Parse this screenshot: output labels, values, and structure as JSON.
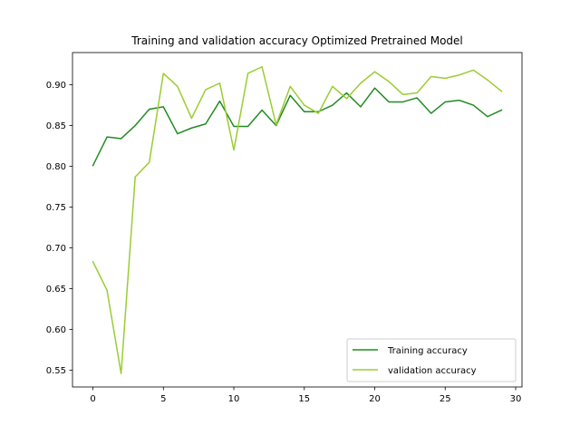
{
  "chart_data": {
    "type": "line",
    "title": "Training and validation accuracy Optimized Pretrained Model",
    "xlabel": "",
    "ylabel": "",
    "xlim": [
      -1.45,
      30.45
    ],
    "ylim": [
      0.5295,
      0.9395
    ],
    "x_ticks": [
      0,
      5,
      10,
      15,
      20,
      25,
      30
    ],
    "y_ticks": [
      0.55,
      0.6,
      0.65,
      0.7,
      0.75,
      0.8,
      0.85,
      0.9
    ],
    "y_tick_labels": [
      "0.55",
      "0.60",
      "0.65",
      "0.70",
      "0.75",
      "0.80",
      "0.85",
      "0.90"
    ],
    "x": [
      0,
      1,
      2,
      3,
      4,
      5,
      6,
      7,
      8,
      9,
      10,
      11,
      12,
      13,
      14,
      15,
      16,
      17,
      18,
      19,
      20,
      21,
      22,
      23,
      24,
      25,
      26,
      27,
      28,
      29
    ],
    "series": [
      {
        "name": "Training accuracy",
        "color": "#228b22",
        "values": [
          0.801,
          0.836,
          0.834,
          0.85,
          0.87,
          0.873,
          0.84,
          0.847,
          0.852,
          0.88,
          0.849,
          0.849,
          0.869,
          0.85,
          0.887,
          0.867,
          0.867,
          0.875,
          0.89,
          0.873,
          0.896,
          0.879,
          0.879,
          0.884,
          0.865,
          0.879,
          0.881,
          0.875,
          0.861,
          0.869
        ]
      },
      {
        "name": "validation accuracy",
        "color": "#9acd32",
        "values": [
          0.683,
          0.648,
          0.546,
          0.787,
          0.805,
          0.914,
          0.898,
          0.859,
          0.894,
          0.902,
          0.82,
          0.914,
          0.922,
          0.851,
          0.898,
          0.875,
          0.865,
          0.898,
          0.883,
          0.902,
          0.916,
          0.904,
          0.888,
          0.89,
          0.91,
          0.908,
          0.912,
          0.918,
          0.906,
          0.892
        ]
      }
    ],
    "legend": {
      "position": "lower right",
      "entries": [
        "Training accuracy",
        "validation accuracy"
      ]
    },
    "grid": false
  }
}
